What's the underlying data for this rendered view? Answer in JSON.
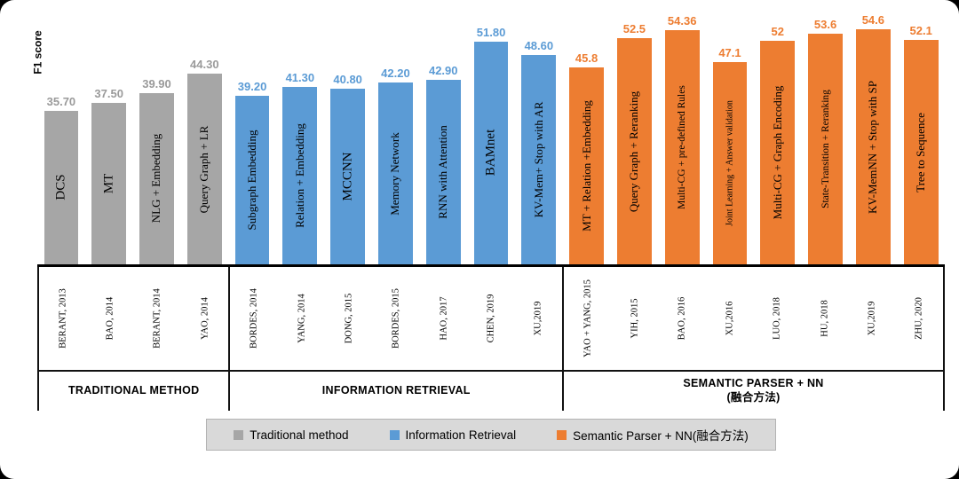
{
  "ylabel": "F1 score",
  "chart_data": {
    "type": "bar",
    "ylabel": "F1 score",
    "ylim": [
      0,
      60
    ],
    "groups": [
      {
        "name": "TRADITIONAL METHOD",
        "name_line2": "",
        "color": "#a6a6a6",
        "value_color": "#9a9a9a",
        "bars": [
          {
            "label": "DCS",
            "year": "BERANT,  2013",
            "value": 35.7,
            "display": "35.70"
          },
          {
            "label": "MT",
            "year": "BAO, 2014",
            "value": 37.5,
            "display": "37.50"
          },
          {
            "label": "NLG + Embedding",
            "year": "BERANT,  2014",
            "value": 39.9,
            "display": "39.90"
          },
          {
            "label": "Query Graph + LR",
            "year": "YAO, 2014",
            "value": 44.3,
            "display": "44.30"
          }
        ]
      },
      {
        "name": "INFORMATION RETRIEVAL",
        "name_line2": "",
        "color": "#5b9bd5",
        "value_color": "#5b9bd5",
        "bars": [
          {
            "label": "Subgraph Embedding",
            "year": "BORDES, 2014",
            "value": 39.2,
            "display": "39.20"
          },
          {
            "label": "Relation + Embedding",
            "year": "YANG, 2014",
            "value": 41.3,
            "display": "41.30"
          },
          {
            "label": "MCCNN",
            "year": "DONG,  2015",
            "value": 40.8,
            "display": "40.80"
          },
          {
            "label": "Memory Network",
            "year": "BORDES,  2015",
            "value": 42.2,
            "display": "42.20"
          },
          {
            "label": "RNN with Attention",
            "year": "HAO, 2017",
            "value": 42.9,
            "display": "42.90"
          },
          {
            "label": "BAMnet",
            "year": "CHEN, 2019",
            "value": 51.8,
            "display": "51.80"
          },
          {
            "label": "KV-Mem+ Stop with AR",
            "year": "XU,2019",
            "value": 48.6,
            "display": "48.60"
          }
        ]
      },
      {
        "name": "SEMANTIC PARSER + NN",
        "name_line2": "(融合方法)",
        "color": "#ed7d31",
        "value_color": "#ed7d31",
        "bars": [
          {
            "label": "MT + Relation +Embedding",
            "year": "YAO + YANG, 2015",
            "value": 45.8,
            "display": "45.8"
          },
          {
            "label": "Query Graph + Reranking",
            "year": "YIH, 2015",
            "value": 52.5,
            "display": "52.5"
          },
          {
            "label": "Multi-CG + pre-defined Rules",
            "year": "BAO, 2016",
            "value": 54.36,
            "display": "54.36"
          },
          {
            "label": "Joint Learning + Answer validation",
            "year": "XU,2016",
            "value": 47.1,
            "display": "47.1"
          },
          {
            "label": "Multi-CG + Graph Encoding",
            "year": "LUO, 2018",
            "value": 52,
            "display": "52"
          },
          {
            "label": "State-Transition + Reranking",
            "year": "HU, 2018",
            "value": 53.6,
            "display": "53.6"
          },
          {
            "label": "KV-MemNN + Stop with SP",
            "year": "XU,2019",
            "value": 54.6,
            "display": "54.6"
          },
          {
            "label": "Tree to Sequence",
            "year": "ZHU, 2020",
            "value": 52.1,
            "display": "52.1"
          }
        ]
      }
    ]
  },
  "legend": {
    "items": [
      {
        "label": "Traditional method",
        "color": "#a6a6a6"
      },
      {
        "label": "Information Retrieval",
        "color": "#5b9bd5"
      },
      {
        "label": "Semantic Parser + NN(融合方法)",
        "color": "#ed7d31"
      }
    ]
  }
}
